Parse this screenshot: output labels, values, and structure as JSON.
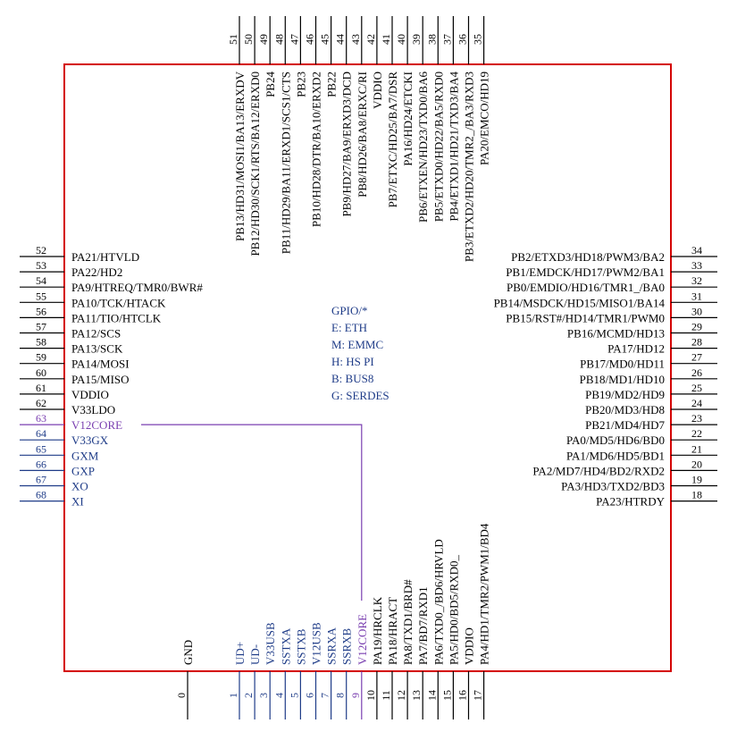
{
  "legend": [
    "GPIO/*",
    "E: ETH",
    "M: EMMC",
    "H: HS PI",
    "B: BUS8",
    "G: SERDES"
  ],
  "colors": {
    "body_border": "#d40000",
    "pin_default": "#000000",
    "pin_analog": "#1f3c88",
    "pin_core": "#7a3fb0"
  },
  "pins": {
    "left": [
      {
        "num": "52",
        "label": "PA21/HTVLD",
        "color": "default"
      },
      {
        "num": "53",
        "label": "PA22/HD2",
        "color": "default"
      },
      {
        "num": "54",
        "label": "PA9/HTREQ/TMR0/BWR#",
        "color": "default"
      },
      {
        "num": "55",
        "label": "PA10/TCK/HTACK",
        "color": "default"
      },
      {
        "num": "56",
        "label": "PA11/TIO/HTCLK",
        "color": "default"
      },
      {
        "num": "57",
        "label": "PA12/SCS",
        "color": "default"
      },
      {
        "num": "58",
        "label": "PA13/SCK",
        "color": "default"
      },
      {
        "num": "59",
        "label": "PA14/MOSI",
        "color": "default"
      },
      {
        "num": "60",
        "label": "PA15/MISO",
        "color": "default"
      },
      {
        "num": "61",
        "label": "VDDIO",
        "color": "default"
      },
      {
        "num": "62",
        "label": "V33LDO",
        "color": "default"
      },
      {
        "num": "63",
        "label": "V12CORE",
        "color": "core"
      },
      {
        "num": "64",
        "label": "V33GX",
        "color": "analog"
      },
      {
        "num": "65",
        "label": "GXM",
        "color": "analog"
      },
      {
        "num": "66",
        "label": "GXP",
        "color": "analog"
      },
      {
        "num": "67",
        "label": "XO",
        "color": "analog"
      },
      {
        "num": "68",
        "label": "XI",
        "color": "analog"
      }
    ],
    "right": [
      {
        "num": "34",
        "label": "PB2/ETXD3/HD18/PWM3/BA2",
        "color": "default"
      },
      {
        "num": "33",
        "label": "PB1/EMDCK/HD17/PWM2/BA1",
        "color": "default"
      },
      {
        "num": "32",
        "label": "PB0/EMDIO/HD16/TMR1_/BA0",
        "color": "default"
      },
      {
        "num": "31",
        "label": "PB14/MSDCK/HD15/MISO1/BA14",
        "color": "default"
      },
      {
        "num": "30",
        "label": "PB15/RST#/HD14/TMR1/PWM0",
        "color": "default"
      },
      {
        "num": "29",
        "label": "PB16/MCMD/HD13",
        "color": "default"
      },
      {
        "num": "28",
        "label": "PA17/HD12",
        "color": "default"
      },
      {
        "num": "27",
        "label": "PB17/MD0/HD11",
        "color": "default"
      },
      {
        "num": "26",
        "label": "PB18/MD1/HD10",
        "color": "default"
      },
      {
        "num": "25",
        "label": "PB19/MD2/HD9",
        "color": "default"
      },
      {
        "num": "24",
        "label": "PB20/MD3/HD8",
        "color": "default"
      },
      {
        "num": "23",
        "label": "PB21/MD4/HD7",
        "color": "default"
      },
      {
        "num": "22",
        "label": "PA0/MD5/HD6/BD0",
        "color": "default"
      },
      {
        "num": "21",
        "label": "PA1/MD6/HD5/BD1",
        "color": "default"
      },
      {
        "num": "20",
        "label": "PA2/MD7/HD4/BD2/RXD2",
        "color": "default"
      },
      {
        "num": "19",
        "label": "PA3/HD3/TXD2/BD3",
        "color": "default"
      },
      {
        "num": "18",
        "label": "PA23/HTRDY",
        "color": "default"
      }
    ],
    "top": [
      {
        "num": "51",
        "label": "PB13/HD31/MOSI1/BA13/ERXDV",
        "color": "default"
      },
      {
        "num": "50",
        "label": "PB12/HD30/SCK1/RTS/BA12/ERXD0",
        "color": "default"
      },
      {
        "num": "49",
        "label": "PB24",
        "color": "default"
      },
      {
        "num": "48",
        "label": "PB11/HD29/BA11/ERXD1/SCS1/CTS",
        "color": "default"
      },
      {
        "num": "47",
        "label": "PB23",
        "color": "default"
      },
      {
        "num": "46",
        "label": "PB10/HD28/DTR/BA10/ERXD2",
        "color": "default"
      },
      {
        "num": "45",
        "label": "PB22",
        "color": "default"
      },
      {
        "num": "44",
        "label": "PB9/HD27/BA9/ERXD3/DCD",
        "color": "default"
      },
      {
        "num": "43",
        "label": "PB8/HD26/BA8/ERXC/RI",
        "color": "default"
      },
      {
        "num": "42",
        "label": "VDDIO",
        "color": "default"
      },
      {
        "num": "41",
        "label": "PB7/ETXC/HD25/BA7/DSR",
        "color": "default"
      },
      {
        "num": "40",
        "label": "PA16/HD24/ETCKI",
        "color": "default"
      },
      {
        "num": "39",
        "label": "PB6/ETXEN/HD23/TXD0/BA6",
        "color": "default"
      },
      {
        "num": "38",
        "label": "PB5/ETXD0/HD22/BA5/RXD0",
        "color": "default"
      },
      {
        "num": "37",
        "label": "PB4/ETXD1/HD21/TXD3/BA4",
        "color": "default"
      },
      {
        "num": "36",
        "label": "PB3/ETXD2/HD20/TMR2_/BA3/RXD3",
        "color": "default"
      },
      {
        "num": "35",
        "label": "PA20/EMCO/HD19",
        "color": "default"
      }
    ],
    "bottom": [
      {
        "num": "0",
        "label": "GND",
        "color": "default"
      },
      {
        "num": "1",
        "label": "UD+",
        "color": "analog"
      },
      {
        "num": "2",
        "label": "UD-",
        "color": "analog"
      },
      {
        "num": "3",
        "label": "V33USB",
        "color": "analog"
      },
      {
        "num": "4",
        "label": "SSTXA",
        "color": "analog"
      },
      {
        "num": "5",
        "label": "SSTXB",
        "color": "analog"
      },
      {
        "num": "6",
        "label": "V12USB",
        "color": "analog"
      },
      {
        "num": "7",
        "label": "SSRXA",
        "color": "analog"
      },
      {
        "num": "8",
        "label": "SSRXB",
        "color": "analog"
      },
      {
        "num": "9",
        "label": "V12CORE",
        "color": "core"
      },
      {
        "num": "10",
        "label": "PA19/HRCLK",
        "color": "default"
      },
      {
        "num": "11",
        "label": "PA18/HRACT",
        "color": "default"
      },
      {
        "num": "12",
        "label": "PA8/TXD1/BRD#",
        "color": "default"
      },
      {
        "num": "13",
        "label": "PA7/BD7/RXD1",
        "color": "default"
      },
      {
        "num": "14",
        "label": "PA6/TXD0_/BD6/HRVLD",
        "color": "default"
      },
      {
        "num": "15",
        "label": "PA5/HD0/BD5/RXD0_",
        "color": "default"
      },
      {
        "num": "16",
        "label": "VDDIO",
        "color": "default"
      },
      {
        "num": "17",
        "label": "PA4/HD1/TMR2/PWM1/BD4",
        "color": "default"
      }
    ]
  }
}
